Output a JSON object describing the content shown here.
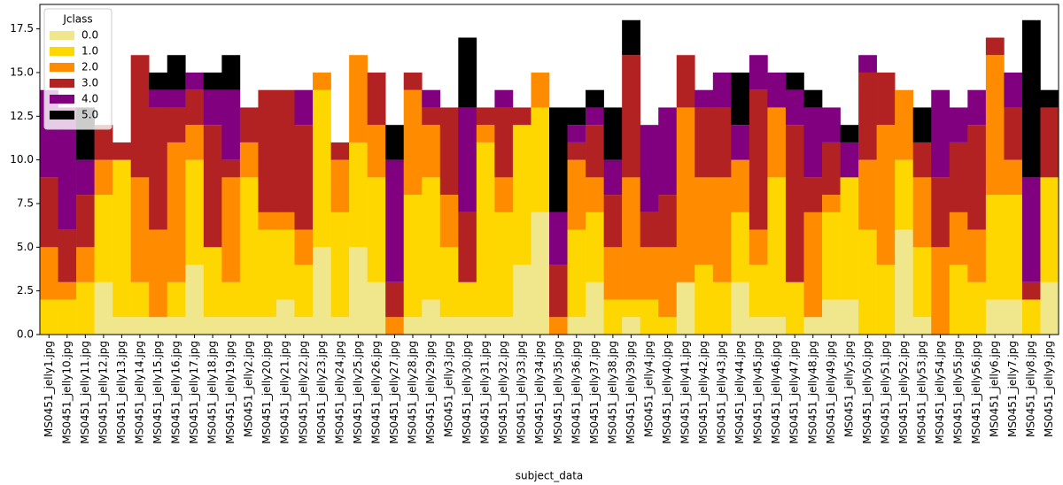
{
  "chart_data": {
    "type": "stacked_bar",
    "x_label": "subject_data",
    "legend_title": "Jclass",
    "legend": "upper left",
    "categories": [
      "MS0451_jelly1.jpg",
      "MS0451_jelly10.jpg",
      "MS0451_jelly11.jpg",
      "MS0451_jelly12.jpg",
      "MS0451_jelly13.jpg",
      "MS0451_jelly14.jpg",
      "MS0451_jelly15.jpg",
      "MS0451_jelly16.jpg",
      "MS0451_jelly17.jpg",
      "MS0451_jelly18.jpg",
      "MS0451_jelly19.jpg",
      "MS0451_jelly2.jpg",
      "MS0451_jelly20.jpg",
      "MS0451_jelly21.jpg",
      "MS0451_jelly22.jpg",
      "MS0451_jelly23.jpg",
      "MS0451_jelly24.jpg",
      "MS0451_jelly25.jpg",
      "MS0451_jelly26.jpg",
      "MS0451_jelly27.jpg",
      "MS0451_jelly28.jpg",
      "MS0451_jelly29.jpg",
      "MS0451_jelly3.jpg",
      "MS0451_jelly30.jpg",
      "MS0451_jelly31.jpg",
      "MS0451_jelly32.jpg",
      "MS0451_jelly33.jpg",
      "MS0451_jelly34.jpg",
      "MS0451_jelly35.jpg",
      "MS0451_jelly36.jpg",
      "MS0451_jelly37.jpg",
      "MS0451_jelly38.jpg",
      "MS0451_jelly39.jpg",
      "MS0451_jelly4.jpg",
      "MS0451_jelly40.jpg",
      "MS0451_jelly41.jpg",
      "MS0451_jelly42.jpg",
      "MS0451_jelly43.jpg",
      "MS0451_jelly44.jpg",
      "MS0451_jelly45.jpg",
      "MS0451_jelly46.jpg",
      "MS0451_jelly47.jpg",
      "MS0451_jelly48.jpg",
      "MS0451_jelly49.jpg",
      "MS0451_jelly5.jpg",
      "MS0451_jelly50.jpg",
      "MS0451_jelly51.jpg",
      "MS0451_jelly52.jpg",
      "MS0451_jelly53.jpg",
      "MS0451_jelly54.jpg",
      "MS0451_jelly55.jpg",
      "MS0451_jelly56.jpg",
      "MS0451_jelly6.jpg",
      "MS0451_jelly7.jpg",
      "MS0451_jelly8.jpg",
      "MS0451_jelly9.jpg"
    ],
    "series": [
      {
        "name": "0.0",
        "color": "#f0e68c",
        "values": [
          0,
          0,
          0,
          3,
          1,
          1,
          1,
          1,
          4,
          1,
          1,
          1,
          1,
          2,
          1,
          5,
          1,
          5,
          3,
          0,
          1,
          2,
          1,
          1,
          1,
          1,
          4,
          7,
          0,
          1,
          3,
          0,
          1,
          0,
          0,
          3,
          0,
          0,
          3,
          1,
          1,
          0,
          1,
          2,
          2,
          0,
          0,
          6,
          1,
          0,
          0,
          0,
          2,
          2,
          0,
          3
        ]
      },
      {
        "name": "1.0",
        "color": "#ffd700",
        "values": [
          2,
          2,
          3,
          5,
          9,
          2,
          0,
          2,
          6,
          4,
          2,
          8,
          5,
          4,
          3,
          9,
          6,
          6,
          6,
          0,
          7,
          7,
          4,
          2,
          10,
          6,
          8,
          6,
          0,
          5,
          4,
          2,
          1,
          2,
          1,
          0,
          4,
          3,
          4,
          3,
          8,
          3,
          0,
          5,
          7,
          6,
          4,
          4,
          4,
          0,
          4,
          3,
          6,
          6,
          2,
          6
        ]
      },
      {
        "name": "2.0",
        "color": "#ff8c00",
        "values": [
          3,
          1,
          2,
          2,
          0,
          6,
          5,
          8,
          2,
          0,
          6,
          2,
          1,
          1,
          2,
          1,
          3,
          5,
          3,
          1,
          6,
          3,
          3,
          0,
          1,
          2,
          0,
          2,
          1,
          4,
          2,
          3,
          7,
          3,
          4,
          10,
          5,
          6,
          3,
          2,
          4,
          0,
          6,
          1,
          0,
          4,
          8,
          4,
          4,
          5,
          3,
          3,
          8,
          2,
          0,
          0
        ]
      },
      {
        "name": "3.0",
        "color": "#b22222",
        "values": [
          4,
          3,
          3,
          2,
          1,
          7,
          7,
          2,
          2,
          7,
          1,
          2,
          7,
          7,
          6,
          0,
          1,
          0,
          3,
          2,
          1,
          1,
          5,
          4,
          1,
          4,
          1,
          0,
          3,
          1,
          3,
          3,
          7,
          2,
          3,
          3,
          4,
          4,
          0,
          8,
          0,
          9,
          2,
          3,
          0,
          5,
          3,
          0,
          2,
          4,
          4,
          6,
          1,
          3,
          1,
          4
        ]
      },
      {
        "name": "4.0",
        "color": "#800080",
        "values": [
          5,
          7,
          2,
          0,
          0,
          0,
          1,
          1,
          1,
          2,
          4,
          0,
          0,
          0,
          2,
          0,
          0,
          0,
          0,
          7,
          0,
          1,
          0,
          6,
          0,
          1,
          0,
          0,
          3,
          1,
          1,
          2,
          0,
          5,
          5,
          0,
          1,
          2,
          2,
          2,
          2,
          2,
          4,
          2,
          2,
          1,
          0,
          0,
          0,
          5,
          2,
          2,
          0,
          2,
          6,
          0
        ]
      },
      {
        "name": "5.0",
        "color": "#000000",
        "values": [
          0,
          0,
          3,
          0,
          0,
          0,
          1,
          2,
          0,
          1,
          2,
          0,
          0,
          0,
          0,
          0,
          0,
          0,
          0,
          2,
          0,
          0,
          0,
          4,
          0,
          0,
          0,
          0,
          6,
          1,
          1,
          3,
          2,
          0,
          0,
          0,
          0,
          0,
          3,
          0,
          0,
          1,
          1,
          0,
          1,
          0,
          0,
          0,
          2,
          0,
          0,
          0,
          0,
          0,
          9,
          1
        ]
      }
    ],
    "ylim": [
      0,
      18.9
    ],
    "yticks": [
      {
        "value": 0,
        "label": "0.0"
      },
      {
        "value": 2.5,
        "label": "2.5"
      },
      {
        "value": 5,
        "label": "5.0"
      },
      {
        "value": 7.5,
        "label": "7.5"
      },
      {
        "value": 10,
        "label": "10.0"
      },
      {
        "value": 12.5,
        "label": "12.5"
      },
      {
        "value": 15,
        "label": "15.0"
      },
      {
        "value": 17.5,
        "label": "17.5"
      }
    ],
    "grid": false
  }
}
